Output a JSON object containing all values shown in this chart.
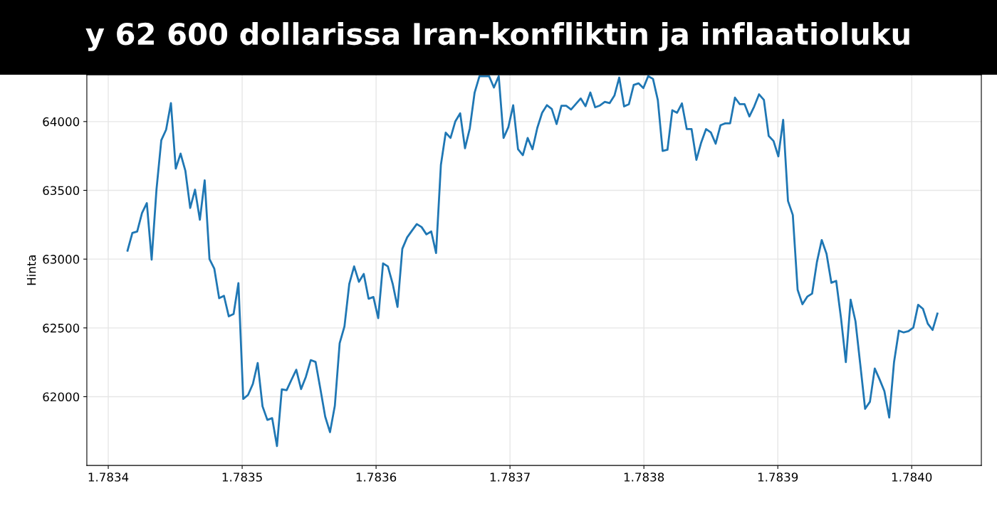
{
  "chart_data": {
    "type": "line",
    "title": "y 62 600 dollarissa Iran-konfliktin ja inflaatioluku",
    "ylabel": "Hinta",
    "x": [
      1.7834144,
      1.783418,
      1.7834216,
      1.7834252,
      1.7834288,
      1.7834324,
      1.783436,
      1.7834396,
      1.7834432,
      1.7834468,
      1.7834504,
      1.783454,
      1.7834576,
      1.7834612,
      1.7834648,
      1.7834684,
      1.783472,
      1.7834756,
      1.7834792,
      1.7834828,
      1.7834864,
      1.78349,
      1.7834936,
      1.7834972,
      1.7835008,
      1.7835044,
      1.783508,
      1.7835116,
      1.7835152,
      1.7835188,
      1.7835224,
      1.783526,
      1.7835296,
      1.7835332,
      1.7835368,
      1.7835404,
      1.783544,
      1.7835476,
      1.7835512,
      1.7835548,
      1.7835584,
      1.783562,
      1.7835656,
      1.7835692,
      1.7835728,
      1.7835764,
      1.78358,
      1.7835836,
      1.7835872,
      1.7835908,
      1.7835944,
      1.783598,
      1.7836016,
      1.7836052,
      1.7836088,
      1.7836124,
      1.783616,
      1.7836196,
      1.7836232,
      1.7836268,
      1.7836304,
      1.783634,
      1.7836376,
      1.7836412,
      1.7836448,
      1.7836484,
      1.783652,
      1.7836556,
      1.7836592,
      1.7836628,
      1.7836664,
      1.78367,
      1.7836736,
      1.7836772,
      1.7836808,
      1.7836844,
      1.783688,
      1.7836916,
      1.7836952,
      1.7836988,
      1.7837024,
      1.783706,
      1.7837096,
      1.7837132,
      1.7837168,
      1.7837204,
      1.783724,
      1.7837276,
      1.7837312,
      1.7837348,
      1.7837384,
      1.783742,
      1.7837456,
      1.7837492,
      1.7837528,
      1.7837564,
      1.78376,
      1.7837636,
      1.7837672,
      1.7837708,
      1.7837744,
      1.783778,
      1.7837816,
      1.7837852,
      1.7837888,
      1.7837924,
      1.783796,
      1.7837996,
      1.7838032,
      1.7838068,
      1.7838104,
      1.783814,
      1.7838176,
      1.7838212,
      1.7838248,
      1.7838284,
      1.783832,
      1.7838356,
      1.7838392,
      1.7838428,
      1.7838464,
      1.78385,
      1.7838536,
      1.7838572,
      1.7838608,
      1.7838644,
      1.783868,
      1.7838716,
      1.7838752,
      1.7838788,
      1.7838824,
      1.783886,
      1.7838896,
      1.7838932,
      1.7838968,
      1.7839004,
      1.783904,
      1.7839076,
      1.7839112,
      1.7839148,
      1.7839184,
      1.783922,
      1.7839256,
      1.7839292,
      1.7839328,
      1.7839364,
      1.78394,
      1.7839436,
      1.7839472,
      1.7839508,
      1.7839544,
      1.783958,
      1.7839616,
      1.7839652,
      1.7839688,
      1.7839724,
      1.783976,
      1.7839796,
      1.7839832,
      1.7839868,
      1.7839904,
      1.783994,
      1.7839976,
      1.7840012,
      1.7840048,
      1.7840084,
      1.784012,
      1.7840156,
      1.7840192
    ],
    "series": [
      {
        "color": "#1f77b4",
        "values": [
          63062,
          63190,
          63201,
          63335,
          63407,
          62996,
          63505,
          63864,
          63941,
          64134,
          63658,
          63767,
          63641,
          63372,
          63505,
          63286,
          63573,
          63000,
          62930,
          62716,
          62733,
          62584,
          62601,
          62826,
          61984,
          62013,
          62093,
          62245,
          61930,
          61831,
          61844,
          61641,
          62053,
          62047,
          62123,
          62196,
          62055,
          62145,
          62266,
          62253,
          62057,
          61855,
          61742,
          61934,
          62388,
          62511,
          62821,
          62947,
          62835,
          62892,
          62712,
          62725,
          62571,
          62969,
          62947,
          62821,
          62652,
          63075,
          63158,
          63207,
          63255,
          63233,
          63180,
          63201,
          63044,
          63685,
          63919,
          63881,
          64002,
          64060,
          63806,
          63951,
          64211,
          64330,
          64330,
          64330,
          64247,
          64330,
          63881,
          63960,
          64119,
          63799,
          63756,
          63881,
          63799,
          63954,
          64064,
          64119,
          64092,
          63982,
          64115,
          64115,
          64088,
          64128,
          64168,
          64112,
          64211,
          64104,
          64117,
          64143,
          64134,
          64189,
          64320,
          64110,
          64126,
          64266,
          64278,
          64244,
          64330,
          64310,
          64156,
          63786,
          63795,
          64082,
          64064,
          64132,
          63945,
          63945,
          63722,
          63848,
          63945,
          63921,
          63839,
          63973,
          63987,
          63987,
          64174,
          64126,
          64126,
          64037,
          64110,
          64198,
          64158,
          63896,
          63859,
          63747,
          64013,
          63423,
          63321,
          62777,
          62672,
          62727,
          62749,
          62978,
          63139,
          63038,
          62828,
          62842,
          62571,
          62251,
          62705,
          62548,
          62233,
          61912,
          61963,
          62205,
          62126,
          62040,
          61848,
          62251,
          62480,
          62467,
          62476,
          62502,
          62668,
          62639,
          62531,
          62485,
          62604
        ]
      }
    ],
    "xlim": [
      1.783384,
      1.784052
    ],
    "xticks": [
      {
        "value": 1.7834,
        "label": "1.7834"
      },
      {
        "value": 1.7835,
        "label": "1.7835"
      },
      {
        "value": 1.7836,
        "label": "1.7836"
      },
      {
        "value": 1.7837,
        "label": "1.7837"
      },
      {
        "value": 1.7838,
        "label": "1.7838"
      },
      {
        "value": 1.7839,
        "label": "1.7839"
      },
      {
        "value": 1.784,
        "label": "1.7840"
      }
    ],
    "ylim": [
      61500,
      64340
    ],
    "yticks": [
      62000,
      62500,
      63000,
      63500,
      64000
    ],
    "grid": true,
    "line_style": "solid",
    "marker": "none"
  }
}
